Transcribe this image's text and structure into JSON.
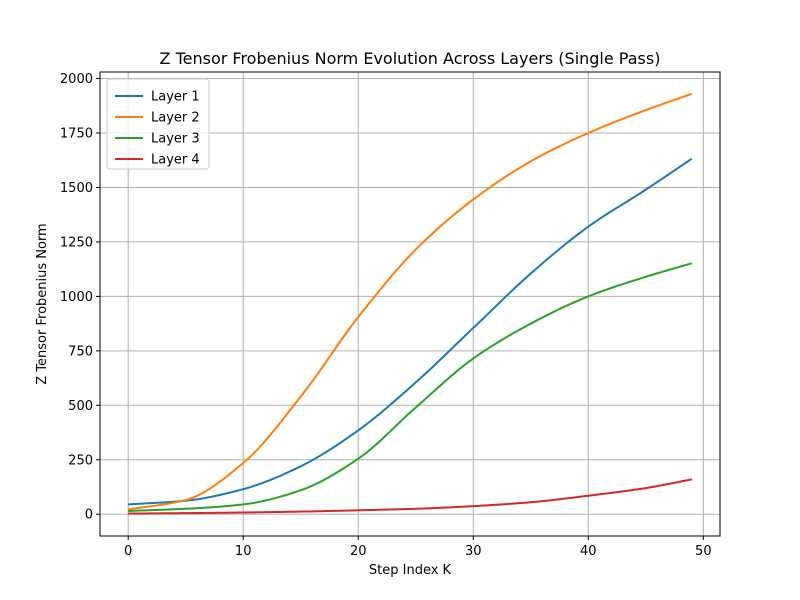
{
  "chart_data": {
    "type": "line",
    "title": "Z Tensor Frobenius Norm Evolution Across Layers (Single Pass)",
    "xlabel": "Step Index K",
    "ylabel": "Z Tensor Frobenius Norm",
    "xlim": [
      -2.45,
      51.45
    ],
    "ylim": [
      -100,
      2030
    ],
    "xticks": [
      0,
      10,
      20,
      30,
      40,
      50
    ],
    "yticks": [
      0,
      250,
      500,
      750,
      1000,
      1250,
      1500,
      1750,
      2000
    ],
    "grid": true,
    "legend_position": "top-left",
    "x": [
      0,
      5,
      10,
      15,
      20,
      25,
      30,
      35,
      40,
      45,
      49
    ],
    "series": [
      {
        "name": "Layer 1",
        "color": "#1f77b4",
        "values": [
          45,
          62,
          115,
          220,
          385,
          605,
          855,
          1105,
          1320,
          1490,
          1632
        ]
      },
      {
        "name": "Layer 2",
        "color": "#ff7f0e",
        "values": [
          22,
          65,
          235,
          540,
          905,
          1215,
          1445,
          1620,
          1750,
          1855,
          1930
        ]
      },
      {
        "name": "Layer 3",
        "color": "#2ca02c",
        "values": [
          15,
          25,
          45,
          110,
          255,
          490,
          715,
          875,
          1000,
          1090,
          1152
        ]
      },
      {
        "name": "Layer 4",
        "color": "#d62728",
        "values": [
          3,
          5,
          8,
          12,
          18,
          25,
          37,
          55,
          85,
          120,
          160
        ]
      }
    ]
  }
}
